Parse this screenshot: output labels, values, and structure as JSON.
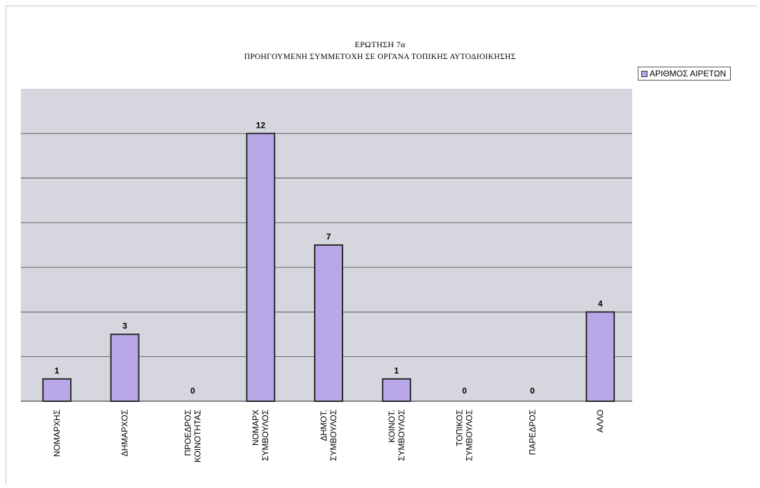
{
  "chart_data": {
    "type": "bar",
    "title": "ΕΡΩΤΗΣΗ 7α",
    "subtitle": "ΠΡΟΗΓΟΥΜΕΝΗ ΣΥΜΜΕΤΟΧΗ ΣΕ ΟΡΓΑΝΑ ΤΟΠΙΚΗΣ ΑΥΤΟΔΙΟΙΚΗΣΗΣ",
    "categories": [
      [
        "ΝΟΜΑΡΧΗΣ"
      ],
      [
        "ΔΗΜΑΡΧΟΣ"
      ],
      [
        "ΠΡΟΕΔΡΟΣ",
        "ΚΟΙΝΟΤΗΤΑΣ"
      ],
      [
        "ΝΟΜΑΡΧ",
        "ΣΥΜΒΟΥΛΟΣ"
      ],
      [
        "ΔΗΜΟΤ.",
        "ΣΥΜΒΟΥΛΟΣ"
      ],
      [
        "ΚΟΙΝΟΤ.",
        "ΣΥΜΒΟΥΛΟΣ"
      ],
      [
        "ΤΟΠΙΚΟΣ",
        "ΣΥΜΒΟΥΛΟΣ"
      ],
      [
        "ΠΑΡΕΔΡΟΣ"
      ],
      [
        "ΑΛΛΟ"
      ]
    ],
    "series": [
      {
        "name": "ΑΡΙΘΜΟΣ ΑΙΡΕΤΩΝ",
        "values": [
          1,
          3,
          0,
          12,
          7,
          1,
          0,
          0,
          4
        ]
      }
    ],
    "ylim": [
      0,
      14
    ],
    "ytick_step": 2,
    "grid": true,
    "legend_position": "top-right",
    "colors": {
      "bar_fill": "#b8a8e8",
      "bar_stroke": "#2a2a2a",
      "plot_bg": "#d6d6de",
      "grid": "#3a3a3a"
    }
  }
}
